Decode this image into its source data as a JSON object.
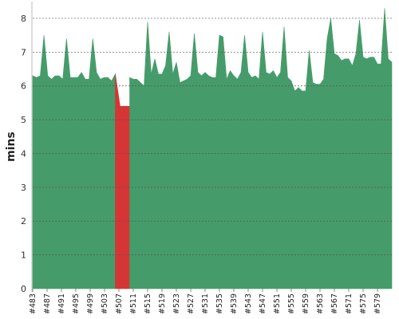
{
  "chart_data": {
    "type": "area",
    "title": "",
    "xlabel": "",
    "ylabel": "mins",
    "ylim": [
      0,
      8.4
    ],
    "yticks": [
      0,
      1,
      2,
      3,
      4,
      5,
      6,
      7,
      8
    ],
    "grid": true,
    "x_tick_labels": [
      "#483",
      "#487",
      "#491",
      "#495",
      "#499",
      "#503",
      "#507",
      "#511",
      "#515",
      "#519",
      "#523",
      "#527",
      "#531",
      "#535",
      "#539",
      "#543",
      "#547",
      "#551",
      "#555",
      "#559",
      "#563",
      "#567",
      "#571",
      "#575",
      "#579"
    ],
    "x_start": 483,
    "x_end": 583,
    "series": [
      {
        "color": "#459c6a",
        "x_start": 483,
        "x_end": 506,
        "values": [
          6.3,
          6.25,
          6.3,
          7.5,
          6.3,
          6.2,
          6.3,
          6.3,
          6.2,
          7.4,
          6.25,
          6.25,
          6.25,
          6.4,
          6.2,
          6.2,
          7.4,
          6.4,
          6.2,
          6.25,
          6.25,
          6.15,
          6.35
        ]
      },
      {
        "color": "#d63535",
        "x_start": 506,
        "x_end": 510,
        "values": [
          6.35,
          5.4,
          5.4,
          5.4
        ]
      },
      {
        "color": "#459c6a",
        "x_start": 510,
        "x_end": 583,
        "values": [
          6.25,
          6.2,
          6.2,
          6.1,
          6.0,
          7.9,
          6.35,
          6.8,
          6.35,
          6.35,
          6.6,
          7.6,
          6.35,
          6.7,
          6.1,
          6.15,
          6.2,
          6.3,
          7.55,
          6.4,
          6.3,
          6.4,
          6.3,
          6.25,
          6.25,
          7.5,
          7.45,
          6.2,
          6.45,
          6.3,
          6.2,
          6.4,
          7.5,
          6.4,
          6.25,
          6.3,
          6.2,
          7.6,
          6.4,
          6.35,
          6.45,
          6.25,
          6.4,
          7.75,
          6.25,
          6.15,
          5.85,
          5.95,
          5.85,
          5.85,
          7.05,
          6.1,
          6.05,
          6.05,
          6.2,
          7.4,
          8.0,
          6.95,
          6.9,
          6.75,
          6.8,
          6.8,
          6.6,
          6.95,
          7.95,
          6.85,
          6.8,
          6.85,
          6.85,
          6.65,
          6.65,
          8.3,
          6.8,
          6.7
        ]
      }
    ]
  }
}
